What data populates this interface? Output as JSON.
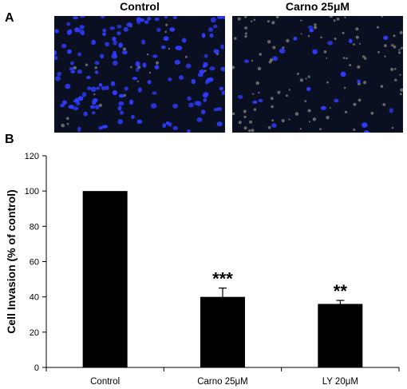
{
  "panels": {
    "a_letter": "A",
    "b_letter": "B",
    "image_titles": [
      "Control",
      "Carno 25μM"
    ],
    "image_names": [
      "control-micrograph",
      "carno-micrograph"
    ]
  },
  "colors": {
    "bar": "#000000",
    "nucleus": "#2f3cff",
    "micrograph_bg": "#0b0f22"
  },
  "chart_data": {
    "type": "bar",
    "categories": [
      "Control",
      "Carno 25μM",
      "LY 20μM"
    ],
    "values": [
      100,
      40,
      36
    ],
    "errors": [
      0,
      5,
      2
    ],
    "significance": [
      "",
      "***",
      "**"
    ],
    "title": "",
    "xlabel": "",
    "ylabel": "Cell Invasion (% of control)",
    "ylim": [
      0,
      120
    ],
    "yticks": [
      0,
      20,
      40,
      60,
      80,
      100,
      120
    ],
    "grid": false
  }
}
